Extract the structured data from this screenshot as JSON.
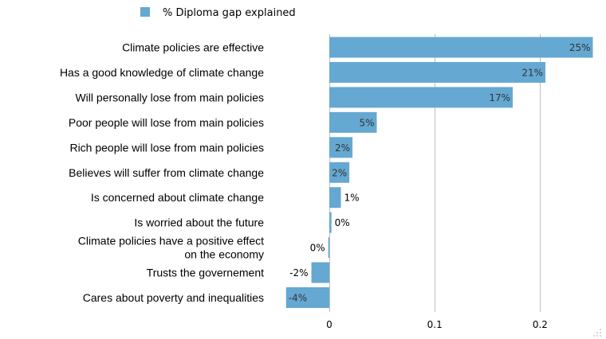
{
  "chart_data": {
    "type": "bar",
    "orientation": "horizontal",
    "categories": [
      "Climate policies are effective",
      "Has a good knowledge of climate change",
      "Will personally lose from main policies",
      "Poor people will lose from main policies",
      "Rich people will lose from main policies",
      "Believes will suffer from climate change",
      "Is concerned about climate change",
      "Is worried about the future",
      "Climate policies have a positive effect on the economy",
      "Trusts the governement",
      "Cares about poverty and inequalities"
    ],
    "category_lines": [
      [
        "Climate policies are effective"
      ],
      [
        "Has a good knowledge of climate change"
      ],
      [
        "Will personally lose from main policies"
      ],
      [
        "Poor people will lose from main policies"
      ],
      [
        "Rich people will lose from main policies"
      ],
      [
        "Believes will suffer from climate change"
      ],
      [
        "Is concerned about climate change"
      ],
      [
        "Is worried about the future"
      ],
      [
        "Climate policies have a positive effect",
        "on the economy"
      ],
      [
        "Trusts the governement"
      ],
      [
        "Cares about poverty and inequalities"
      ]
    ],
    "series": [
      {
        "name": "% Diploma gap explained",
        "values": [
          0.25,
          0.205,
          0.174,
          0.045,
          0.022,
          0.019,
          0.011,
          0.002,
          -0.001,
          -0.017,
          -0.041
        ],
        "labels": [
          "25%",
          "21%",
          "17%",
          "5%",
          "2%",
          "2%",
          "1%",
          "0%",
          "0%",
          "-2%",
          "-4%"
        ]
      }
    ],
    "xlim": [
      -0.041,
      0.25
    ],
    "xticks": [
      0,
      0.1,
      0.2
    ],
    "xtick_labels": [
      "0",
      "0.1",
      "0.2"
    ],
    "grid": "vertical",
    "legend_position": "top",
    "bar_color": "#65A8D2",
    "grid_color": "#BDBDBD",
    "inside_label_color": "#333333",
    "outside_label_color": "#000000"
  }
}
